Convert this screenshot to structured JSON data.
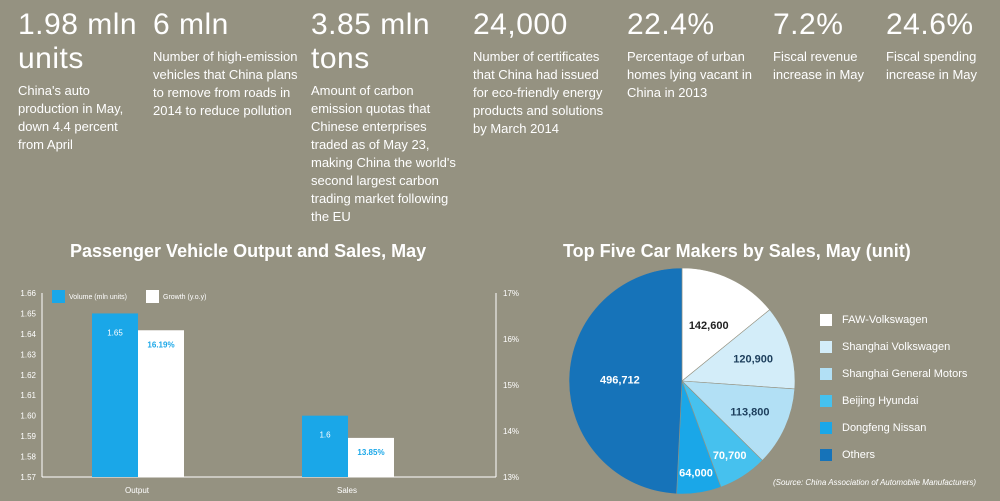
{
  "stats": [
    {
      "value": "1.98 mln units",
      "desc": "China's auto production in May, down 4.4 percent from April"
    },
    {
      "value": "6 mln",
      "desc": "Number of high-emission vehicles that China plans to remove from roads in 2014 to reduce pollution"
    },
    {
      "value": "3.85 mln tons",
      "desc": "Amount of carbon emission quotas that Chinese enterprises traded as of May 23, making China the world's second largest carbon trading market following the EU"
    },
    {
      "value": "24,000",
      "desc": "Number of certificates that China had issued for eco-friendly energy products and solutions by March 2014"
    },
    {
      "value": "22.4%",
      "desc": "Percentage of urban homes lying vacant in China in 2013"
    },
    {
      "value": "7.2%",
      "desc": "Fiscal revenue increase in May"
    },
    {
      "value": "24.6%",
      "desc": "Fiscal spending increase in May"
    }
  ],
  "chart_data": [
    {
      "type": "bar",
      "title": "Passenger Vehicle Output and Sales, May",
      "categories": [
        "Output",
        "Sales"
      ],
      "series": [
        {
          "name": "Volume (mln units)",
          "values": [
            1.65,
            1.6
          ],
          "labels": [
            "1.65",
            "1.6"
          ],
          "axis": "left",
          "color": "#1aa7e8"
        },
        {
          "name": "Growth (y.o.y)",
          "values": [
            16.19,
            13.85
          ],
          "labels": [
            "16.19%",
            "13.85%"
          ],
          "axis": "right",
          "color": "#ffffff"
        }
      ],
      "ylim_left": [
        1.57,
        1.66
      ],
      "yticks_left": [
        "1.57",
        "1.58",
        "1.59",
        "1.60",
        "1.61",
        "1.62",
        "1.63",
        "1.64",
        "1.65",
        "1.66"
      ],
      "ylim_right": [
        13,
        17
      ],
      "yticks_right": [
        "13%",
        "14%",
        "15%",
        "16%",
        "17%"
      ],
      "legend": "top-left"
    },
    {
      "type": "pie",
      "title": "Top Five Car Makers by Sales, May (unit)",
      "labels": [
        "FAW-Volkswagen",
        "Shanghai Volkswagen",
        "Shanghai General Motors",
        "Beijing Hyundai",
        "Dongfeng Nissan",
        "Others"
      ],
      "values": [
        142600,
        120900,
        113800,
        70700,
        64000,
        496712
      ],
      "value_labels": [
        "142,600",
        "120,900",
        "113,800",
        "70,700",
        "64,000",
        "496,712"
      ],
      "colors": [
        "#ffffff",
        "#d3edf9",
        "#b2e0f5",
        "#46c1ee",
        "#1aa7e8",
        "#1673b9"
      ],
      "legend": "right",
      "source": "(Source: China Association of Automobile Manufacturers)"
    }
  ]
}
